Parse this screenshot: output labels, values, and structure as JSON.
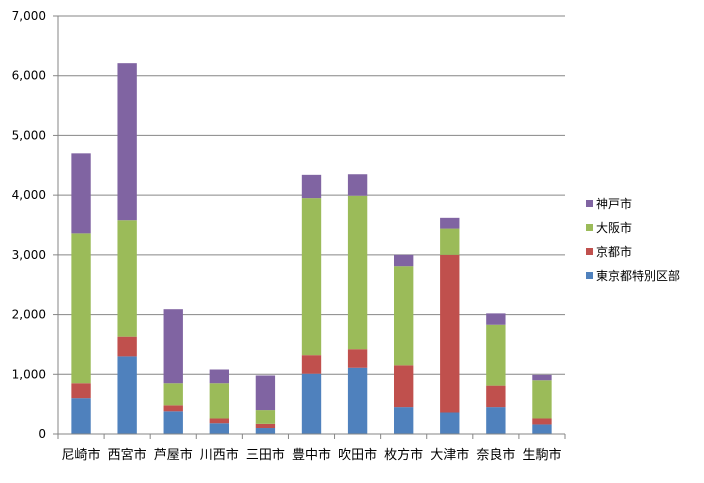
{
  "chart_data": {
    "type": "bar",
    "stacked": true,
    "categories": [
      "尼崎市",
      "西宮市",
      "芦屋市",
      "川西市",
      "三田市",
      "豊中市",
      "吹田市",
      "枚方市",
      "大津市",
      "奈良市",
      "生駒市"
    ],
    "series": [
      {
        "name": "東京都特別区部",
        "color": "#4F81BD",
        "values": [
          600,
          1300,
          380,
          180,
          100,
          1010,
          1110,
          450,
          360,
          450,
          160
        ]
      },
      {
        "name": "京都市",
        "color": "#C0504D",
        "values": [
          250,
          330,
          100,
          80,
          70,
          310,
          310,
          700,
          2640,
          360,
          100
        ]
      },
      {
        "name": "大阪市",
        "color": "#9BBB59",
        "values": [
          2510,
          1950,
          370,
          590,
          230,
          2630,
          2570,
          1660,
          440,
          1020,
          640
        ]
      },
      {
        "name": "神戸市",
        "color": "#8064A2",
        "values": [
          1340,
          2630,
          1240,
          230,
          580,
          390,
          360,
          190,
          180,
          190,
          90
        ]
      }
    ],
    "title": "",
    "xlabel": "",
    "ylabel": "",
    "ylim": [
      0,
      7000
    ],
    "yticks": [
      0,
      1000,
      2000,
      3000,
      4000,
      5000,
      6000,
      7000
    ],
    "ytick_labels": [
      "0",
      "1,000",
      "2,000",
      "3,000",
      "4,000",
      "5,000",
      "6,000",
      "7,000"
    ],
    "grid": true,
    "legend_position": "right",
    "legend_order": [
      "神戸市",
      "大阪市",
      "京都市",
      "東京都特別区部"
    ]
  }
}
